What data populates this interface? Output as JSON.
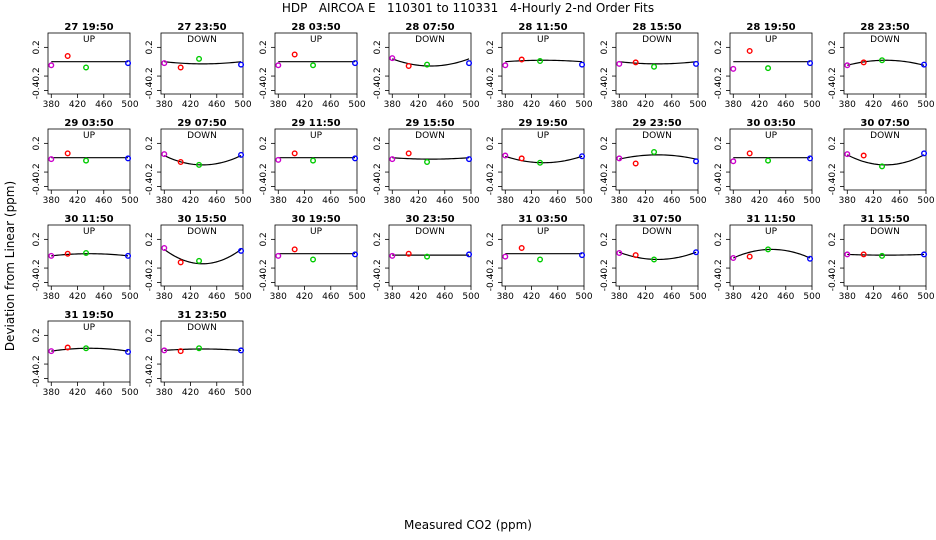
{
  "title": "HDP   AIRCOA E   110301 to 110331   4-Hourly 2-nd Order Fits",
  "xlabel": "Measured CO2 (ppm)",
  "ylabel": "Deviation from Linear (ppm)",
  "chart_data": {
    "type": "scatter",
    "xlim": [
      375,
      500
    ],
    "ylim": [
      -0.45,
      0.4
    ],
    "x_ticks": [
      380,
      420,
      460,
      500
    ],
    "y_ticks": [
      0.2,
      -0.2,
      -0.4
    ],
    "series_colors": [
      "#cc00cc",
      "#ff0000",
      "#00cc00",
      "#0000ff"
    ],
    "standard_x": [
      380,
      405,
      433,
      497
    ],
    "fit_color": "#000000",
    "panels": [
      {
        "title": "27 19:50",
        "dir": "UP",
        "y": [
          -0.05,
          0.08,
          -0.08,
          -0.02
        ],
        "curve": [
          0,
          0
        ]
      },
      {
        "title": "27 23:50",
        "dir": "DOWN",
        "y": [
          -0.02,
          -0.08,
          0.04,
          -0.04
        ],
        "curve": [
          0,
          -0.03
        ]
      },
      {
        "title": "28 03:50",
        "dir": "UP",
        "y": [
          -0.05,
          0.1,
          -0.05,
          -0.02
        ],
        "curve": [
          0,
          0
        ]
      },
      {
        "title": "28 07:50",
        "dir": "DOWN",
        "y": [
          0.05,
          -0.06,
          -0.04,
          -0.02
        ],
        "curve": [
          0.04,
          -0.06
        ]
      },
      {
        "title": "28 11:50",
        "dir": "UP",
        "y": [
          -0.05,
          0.03,
          0.01,
          -0.04
        ],
        "curve": [
          0,
          0.02
        ]
      },
      {
        "title": "28 15:50",
        "dir": "DOWN",
        "y": [
          -0.03,
          -0.01,
          -0.07,
          -0.03
        ],
        "curve": [
          0,
          -0.03
        ]
      },
      {
        "title": "28 19:50",
        "dir": "UP",
        "y": [
          -0.1,
          0.15,
          -0.09,
          -0.02
        ],
        "curve": [
          0,
          0
        ]
      },
      {
        "title": "28 23:50",
        "dir": "DOWN",
        "y": [
          -0.05,
          -0.01,
          0.02,
          -0.04
        ],
        "curve": [
          -0.05,
          0.02
        ]
      },
      {
        "title": "29 03:50",
        "dir": "UP",
        "y": [
          -0.02,
          0.06,
          -0.04,
          -0.01
        ],
        "curve": [
          0,
          0
        ]
      },
      {
        "title": "29 07:50",
        "dir": "DOWN",
        "y": [
          0.05,
          -0.06,
          -0.1,
          0.04
        ],
        "curve": [
          0.03,
          -0.1
        ]
      },
      {
        "title": "29 11:50",
        "dir": "UP",
        "y": [
          -0.03,
          0.06,
          -0.04,
          -0.01
        ],
        "curve": [
          0,
          0
        ]
      },
      {
        "title": "29 15:50",
        "dir": "DOWN",
        "y": [
          -0.02,
          0.06,
          -0.06,
          -0.02
        ],
        "curve": [
          0,
          -0.02
        ]
      },
      {
        "title": "29 19:50",
        "dir": "UP",
        "y": [
          0.03,
          -0.01,
          -0.07,
          0.02
        ],
        "curve": [
          0.02,
          -0.07
        ]
      },
      {
        "title": "29 23:50",
        "dir": "DOWN",
        "y": [
          -0.01,
          -0.08,
          0.08,
          -0.05
        ],
        "curve": [
          -0.02,
          0.04
        ]
      },
      {
        "title": "30 03:50",
        "dir": "UP",
        "y": [
          -0.05,
          0.06,
          -0.04,
          -0.01
        ],
        "curve": [
          0,
          0
        ]
      },
      {
        "title": "30 07:50",
        "dir": "DOWN",
        "y": [
          0.05,
          0.03,
          -0.12,
          0.06
        ],
        "curve": [
          0.04,
          -0.1
        ]
      },
      {
        "title": "30 11:50",
        "dir": "UP",
        "y": [
          -0.03,
          0.0,
          0.01,
          -0.03
        ],
        "curve": [
          -0.03,
          0.0
        ]
      },
      {
        "title": "30 15:50",
        "dir": "DOWN",
        "y": [
          0.08,
          -0.12,
          -0.1,
          0.04
        ],
        "curve": [
          0.06,
          -0.14
        ]
      },
      {
        "title": "30 19:50",
        "dir": "UP",
        "y": [
          -0.03,
          0.06,
          -0.08,
          -0.01
        ],
        "curve": [
          0,
          0
        ]
      },
      {
        "title": "30 23:50",
        "dir": "DOWN",
        "y": [
          -0.03,
          0.0,
          -0.04,
          -0.01
        ],
        "curve": [
          -0.02,
          -0.02
        ]
      },
      {
        "title": "31 03:50",
        "dir": "UP",
        "y": [
          -0.04,
          0.08,
          -0.08,
          -0.02
        ],
        "curve": [
          0,
          0
        ]
      },
      {
        "title": "31 07:50",
        "dir": "DOWN",
        "y": [
          0.01,
          -0.02,
          -0.08,
          0.02
        ],
        "curve": [
          0.02,
          -0.08
        ]
      },
      {
        "title": "31 11:50",
        "dir": "UP",
        "y": [
          -0.06,
          -0.04,
          0.06,
          -0.07
        ],
        "curve": [
          -0.06,
          0.06
        ]
      },
      {
        "title": "31 15:50",
        "dir": "DOWN",
        "y": [
          -0.01,
          -0.01,
          -0.03,
          -0.01
        ],
        "curve": [
          -0.01,
          -0.02
        ]
      },
      {
        "title": "31 19:50",
        "dir": "UP",
        "y": [
          -0.02,
          0.03,
          0.02,
          -0.03
        ],
        "curve": [
          -0.02,
          0.02
        ]
      },
      {
        "title": "31 23:50",
        "dir": "DOWN",
        "y": [
          -0.01,
          -0.02,
          0.02,
          -0.01
        ],
        "curve": [
          -0.01,
          0.01
        ]
      }
    ]
  }
}
